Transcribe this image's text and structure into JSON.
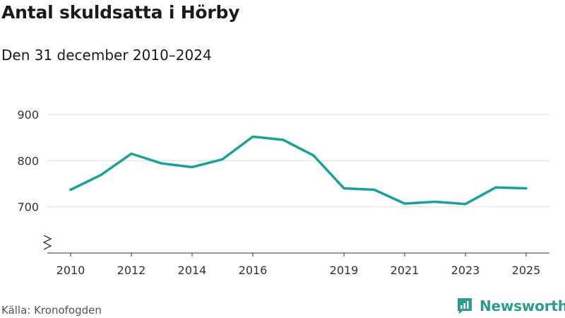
{
  "header": {
    "title": "Antal skuldsatta i Hörby",
    "subtitle": "Den 31 december 2010–2024"
  },
  "footer": {
    "source": "Källa: Kronofogden",
    "brand": "Newsworthy"
  },
  "colors": {
    "line": "#16a399",
    "grid": "#dddddd",
    "brand": "#2a9d8f"
  },
  "chart_data": {
    "type": "line",
    "title": "Antal skuldsatta i Hörby",
    "subtitle": "Den 31 december 2010–2024",
    "x_ticks": [
      2010,
      2012,
      2014,
      2016,
      2019,
      2021,
      2023,
      2025
    ],
    "y_ticks": [
      700,
      800,
      900
    ],
    "ylim": [
      600,
      900
    ],
    "xlim": [
      2010,
      2025
    ],
    "axis_break": true,
    "grid": true,
    "series": [
      {
        "x": [
          2010,
          2011,
          2012,
          2013,
          2014,
          2015,
          2016,
          2017,
          2018,
          2019,
          2020,
          2021,
          2022,
          2023,
          2024,
          2025
        ],
        "values": [
          737,
          769,
          815,
          794,
          786,
          803,
          852,
          845,
          811,
          740,
          737,
          707,
          711,
          706,
          742,
          740
        ]
      }
    ]
  }
}
